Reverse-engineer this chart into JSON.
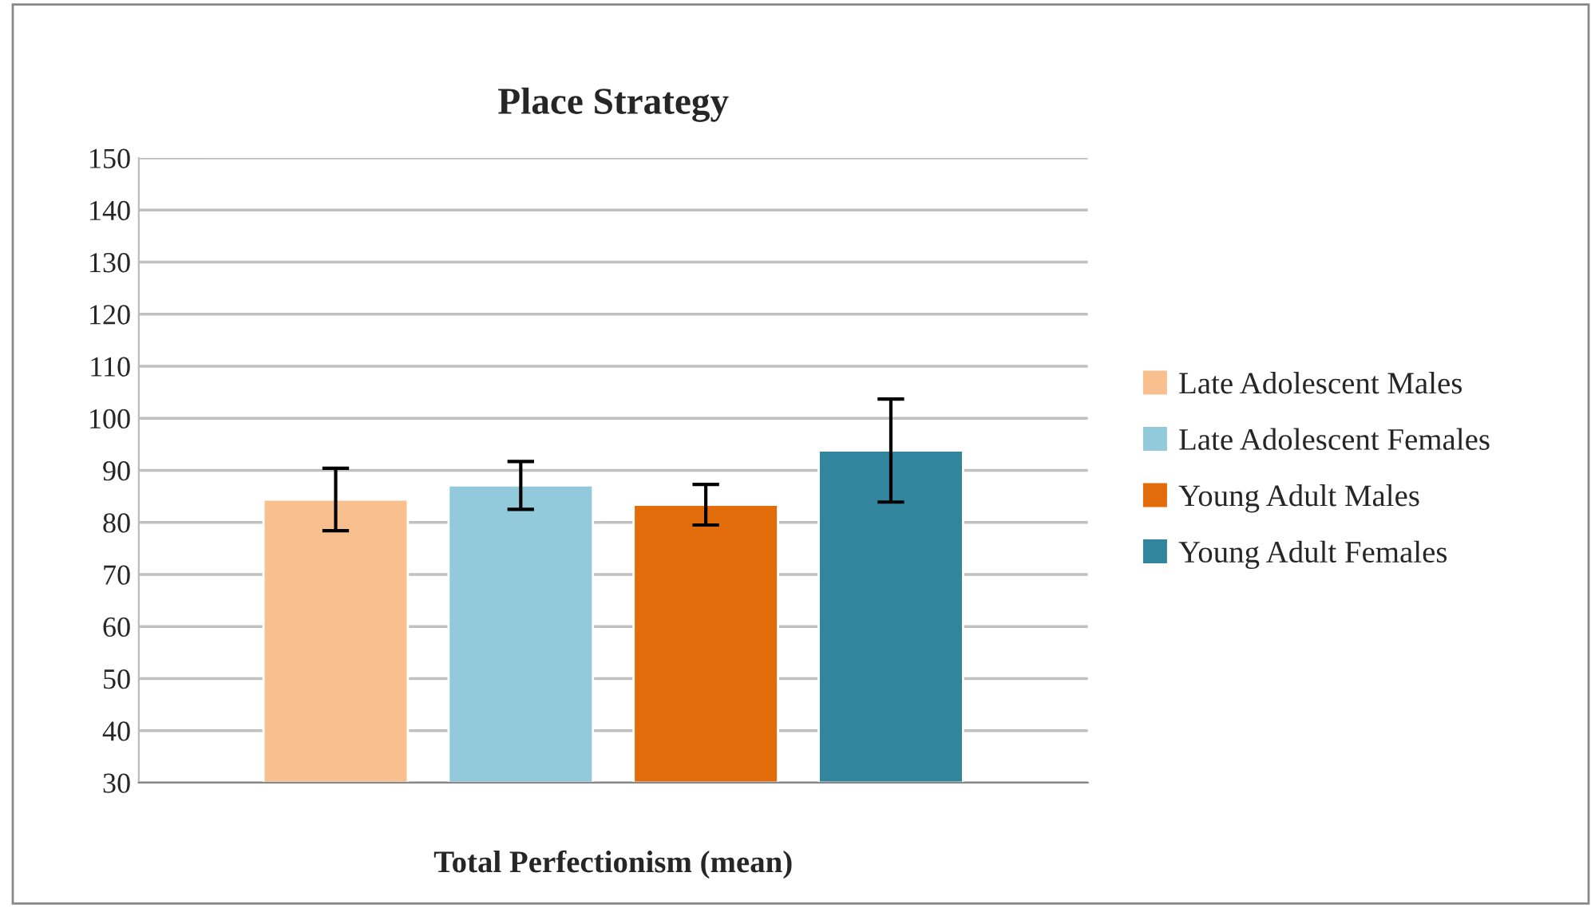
{
  "chart_data": {
    "type": "bar",
    "title": "Place Strategy",
    "xlabel": "Total Perfectionism (mean)",
    "categories": [
      null
    ],
    "series": [
      {
        "name": "Late Adolescent Males",
        "color": "#f9c08f",
        "values": [
          84.4
        ],
        "errors": [
          6.0
        ]
      },
      {
        "name": "Late Adolescent Females",
        "color": "#93cadb",
        "values": [
          87.1
        ],
        "errors": [
          4.6
        ]
      },
      {
        "name": "Young Adult Males",
        "color": "#e36c0a",
        "values": [
          83.4
        ],
        "errors": [
          3.9
        ]
      },
      {
        "name": "Young Adult Females",
        "color": "#31859c",
        "values": [
          93.8
        ],
        "errors": [
          9.9
        ]
      }
    ],
    "ylim": [
      30,
      150
    ],
    "yticks": [
      30,
      40,
      50,
      60,
      70,
      80,
      90,
      100,
      110,
      120,
      130,
      140,
      150
    ],
    "grid": "y",
    "legend": "right"
  }
}
